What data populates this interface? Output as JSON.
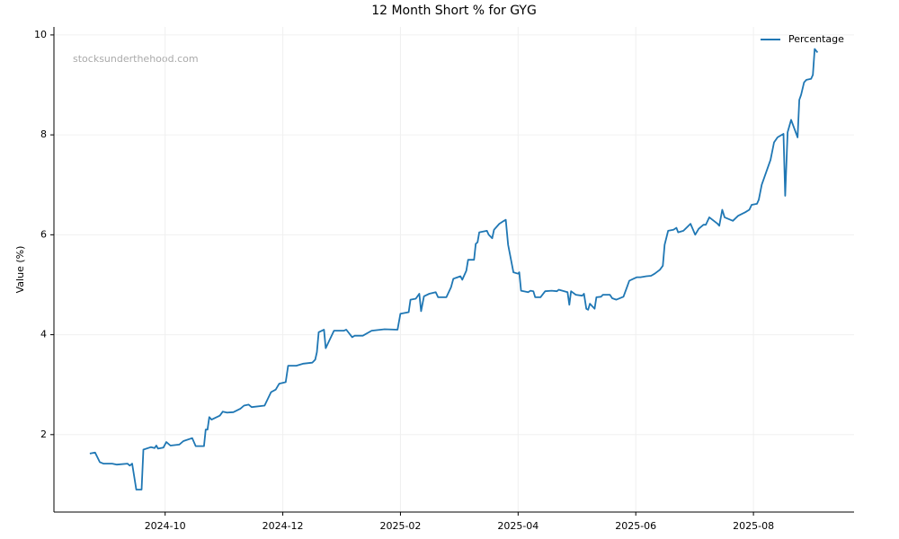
{
  "chart_data": {
    "type": "line",
    "title": "12 Month Short % for GYG",
    "ylabel": "Value (%)",
    "watermark": "stocksunderthehood.com",
    "grid": true,
    "legend": "upper right",
    "xlim": [
      8.11,
      21.71
    ],
    "ylim": [
      0.45,
      10.16
    ],
    "xticks": [
      {
        "value": 10,
        "label": "2024-10"
      },
      {
        "value": 12,
        "label": "2024-12"
      },
      {
        "value": 14,
        "label": "2025-02"
      },
      {
        "value": 16,
        "label": "2025-04"
      },
      {
        "value": 18,
        "label": "2025-06"
      },
      {
        "value": 20,
        "label": "2025-08"
      }
    ],
    "yticks": [
      2,
      4,
      6,
      8,
      10
    ],
    "x": [
      8.72,
      8.81,
      8.89,
      8.95,
      9.1,
      9.18,
      9.36,
      9.4,
      9.44,
      9.51,
      9.6,
      9.63,
      9.76,
      9.82,
      9.85,
      9.88,
      9.97,
      10.02,
      10.09,
      10.24,
      10.31,
      10.46,
      10.52,
      10.66,
      10.69,
      10.72,
      10.75,
      10.79,
      10.93,
      10.98,
      11.05,
      11.16,
      11.28,
      11.34,
      11.42,
      11.47,
      11.69,
      11.8,
      11.88,
      11.94,
      12.05,
      12.09,
      12.23,
      12.35,
      12.5,
      12.55,
      12.58,
      12.61,
      12.7,
      12.73,
      12.87,
      13.04,
      13.08,
      13.18,
      13.22,
      13.36,
      13.51,
      13.73,
      13.95,
      14.0,
      14.14,
      14.17,
      14.26,
      14.32,
      14.35,
      14.4,
      14.49,
      14.6,
      14.64,
      14.78,
      14.86,
      14.9,
      15.02,
      15.05,
      15.12,
      15.15,
      15.25,
      15.28,
      15.31,
      15.34,
      15.47,
      15.5,
      15.56,
      15.59,
      15.68,
      15.76,
      15.79,
      15.83,
      15.92,
      16.0,
      16.02,
      16.05,
      16.17,
      16.21,
      16.26,
      16.29,
      16.38,
      16.46,
      16.57,
      16.66,
      16.69,
      16.84,
      16.87,
      16.9,
      16.98,
      17.09,
      17.12,
      17.16,
      17.19,
      17.22,
      17.3,
      17.33,
      17.41,
      17.44,
      17.56,
      17.6,
      17.67,
      17.79,
      17.85,
      17.89,
      17.96,
      18.02,
      18.08,
      18.18,
      18.26,
      18.32,
      18.41,
      18.46,
      18.49,
      18.55,
      18.64,
      18.69,
      18.72,
      18.81,
      18.93,
      19.01,
      19.07,
      19.15,
      19.19,
      19.25,
      19.39,
      19.42,
      19.47,
      19.51,
      19.65,
      19.74,
      19.86,
      19.93,
      19.97,
      20.06,
      20.09,
      20.14,
      20.29,
      20.35,
      20.41,
      20.51,
      20.54,
      20.58,
      20.64,
      20.75,
      20.78,
      20.81,
      20.86,
      20.9,
      20.98,
      21.01,
      21.04,
      21.09
    ],
    "series": [
      {
        "name": "Percentage",
        "color": "#1f77b4",
        "values": [
          1.62,
          1.64,
          1.45,
          1.42,
          1.42,
          1.4,
          1.42,
          1.38,
          1.42,
          0.9,
          0.9,
          1.7,
          1.75,
          1.73,
          1.78,
          1.72,
          1.74,
          1.85,
          1.78,
          1.8,
          1.87,
          1.93,
          1.77,
          1.77,
          2.1,
          2.1,
          2.35,
          2.3,
          2.38,
          2.46,
          2.44,
          2.45,
          2.52,
          2.58,
          2.6,
          2.55,
          2.58,
          2.85,
          2.9,
          3.02,
          3.05,
          3.38,
          3.38,
          3.42,
          3.44,
          3.5,
          3.65,
          4.05,
          4.1,
          3.73,
          4.08,
          4.08,
          4.1,
          3.95,
          3.98,
          3.98,
          4.08,
          4.11,
          4.1,
          4.42,
          4.45,
          4.7,
          4.72,
          4.82,
          4.47,
          4.77,
          4.82,
          4.85,
          4.75,
          4.75,
          4.95,
          5.12,
          5.17,
          5.1,
          5.28,
          5.5,
          5.5,
          5.82,
          5.85,
          6.05,
          6.08,
          6.0,
          5.93,
          6.1,
          6.22,
          6.28,
          6.3,
          5.8,
          5.25,
          5.22,
          5.25,
          4.88,
          4.85,
          4.88,
          4.87,
          4.75,
          4.75,
          4.87,
          4.88,
          4.87,
          4.9,
          4.85,
          4.6,
          4.87,
          4.8,
          4.78,
          4.82,
          4.52,
          4.5,
          4.62,
          4.52,
          4.75,
          4.76,
          4.8,
          4.8,
          4.73,
          4.7,
          4.76,
          4.95,
          5.08,
          5.12,
          5.15,
          5.15,
          5.17,
          5.18,
          5.22,
          5.3,
          5.38,
          5.8,
          6.08,
          6.1,
          6.14,
          6.05,
          6.08,
          6.22,
          6.0,
          6.12,
          6.2,
          6.2,
          6.35,
          6.22,
          6.18,
          6.5,
          6.35,
          6.28,
          6.38,
          6.45,
          6.5,
          6.6,
          6.62,
          6.7,
          7.0,
          7.5,
          7.85,
          7.95,
          8.02,
          6.78,
          8.05,
          8.3,
          7.95,
          8.7,
          8.8,
          9.05,
          9.1,
          9.12,
          9.2,
          9.72,
          9.65
        ]
      }
    ]
  }
}
